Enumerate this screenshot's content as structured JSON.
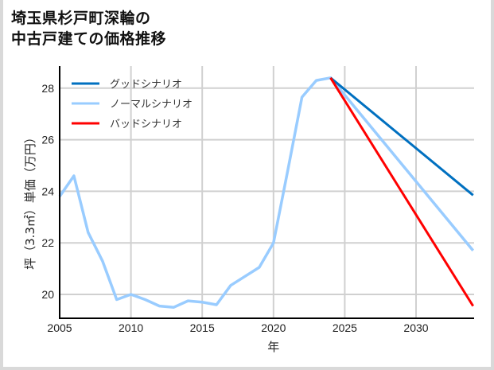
{
  "title": {
    "line1": "埼玉県杉戸町深輪の",
    "line2": "中古戸建ての価格推移"
  },
  "chart_data": {
    "type": "line",
    "title": "埼玉県杉戸町深輪の中古戸建ての価格推移",
    "xlabel": "年",
    "ylabel": "坪（3.3㎡）単価（万円）",
    "xlim": [
      2005,
      2034
    ],
    "ylim": [
      19.1,
      28.9
    ],
    "xticks": [
      2005,
      2010,
      2015,
      2020,
      2025,
      2030
    ],
    "yticks": [
      20,
      22,
      24,
      26,
      28
    ],
    "grid": true,
    "legend_position": "upper left",
    "series": [
      {
        "name": "グッドシナリオ",
        "color": "#0070c0",
        "x": [
          2024,
          2034
        ],
        "values": [
          28.4,
          23.85
        ]
      },
      {
        "name": "ノーマルシナリオ",
        "color": "#99ccff",
        "x": [
          2005,
          2006,
          2007,
          2008,
          2009,
          2010,
          2011,
          2012,
          2013,
          2014,
          2015,
          2016,
          2017,
          2018,
          2019,
          2020,
          2021,
          2022,
          2023,
          2024,
          2034
        ],
        "values": [
          23.8,
          24.6,
          22.4,
          21.3,
          19.8,
          20.0,
          19.8,
          19.55,
          19.5,
          19.75,
          19.7,
          19.6,
          20.35,
          20.7,
          21.05,
          22.0,
          24.8,
          27.65,
          28.3,
          28.4,
          21.7
        ]
      },
      {
        "name": "バッドシナリオ",
        "color": "#ff0000",
        "x": [
          2024,
          2034
        ],
        "values": [
          28.4,
          19.55
        ]
      }
    ]
  }
}
